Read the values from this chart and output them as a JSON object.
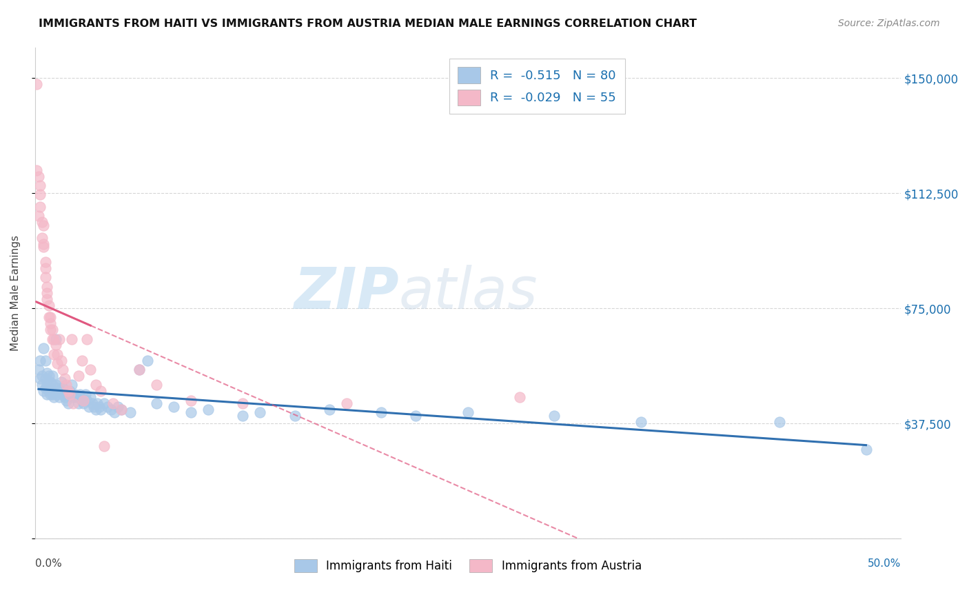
{
  "title": "IMMIGRANTS FROM HAITI VS IMMIGRANTS FROM AUSTRIA MEDIAN MALE EARNINGS CORRELATION CHART",
  "source": "Source: ZipAtlas.com",
  "ylabel": "Median Male Earnings",
  "yticks": [
    0,
    37500,
    75000,
    112500,
    150000
  ],
  "ytick_labels": [
    "",
    "$37,500",
    "$75,000",
    "$112,500",
    "$150,000"
  ],
  "xlim": [
    0.0,
    0.5
  ],
  "ylim": [
    0,
    160000
  ],
  "haiti_R": -0.515,
  "haiti_N": 80,
  "austria_R": -0.029,
  "austria_N": 55,
  "haiti_color": "#a8c8e8",
  "austria_color": "#f4b8c8",
  "haiti_line_color": "#3070b0",
  "austria_line_color": "#e05880",
  "background_color": "#ffffff",
  "watermark_zip": "ZIP",
  "watermark_atlas": "atlas",
  "haiti_scatter_x": [
    0.002,
    0.003,
    0.003,
    0.004,
    0.004,
    0.005,
    0.005,
    0.006,
    0.006,
    0.006,
    0.007,
    0.007,
    0.007,
    0.008,
    0.008,
    0.009,
    0.009,
    0.009,
    0.01,
    0.01,
    0.01,
    0.011,
    0.011,
    0.012,
    0.012,
    0.013,
    0.013,
    0.014,
    0.015,
    0.015,
    0.016,
    0.016,
    0.017,
    0.018,
    0.019,
    0.02,
    0.021,
    0.021,
    0.022,
    0.023,
    0.024,
    0.025,
    0.026,
    0.026,
    0.027,
    0.028,
    0.029,
    0.03,
    0.031,
    0.032,
    0.033,
    0.034,
    0.035,
    0.036,
    0.037,
    0.038,
    0.04,
    0.042,
    0.044,
    0.046,
    0.048,
    0.05,
    0.055,
    0.06,
    0.065,
    0.07,
    0.08,
    0.09,
    0.1,
    0.12,
    0.13,
    0.15,
    0.17,
    0.2,
    0.22,
    0.25,
    0.3,
    0.35,
    0.43,
    0.48
  ],
  "haiti_scatter_y": [
    55000,
    58000,
    52000,
    50000,
    53000,
    62000,
    48000,
    49000,
    52000,
    58000,
    47000,
    50000,
    54000,
    53000,
    48000,
    51000,
    49000,
    47000,
    47000,
    50000,
    53000,
    48000,
    46000,
    65000,
    50000,
    47000,
    49000,
    46000,
    48000,
    51000,
    47000,
    49000,
    46000,
    45000,
    44000,
    48000,
    47000,
    50000,
    46000,
    47000,
    46000,
    44000,
    47000,
    46000,
    45000,
    44000,
    47000,
    45000,
    43000,
    46000,
    44000,
    43000,
    42000,
    44000,
    43000,
    42000,
    44000,
    43000,
    42000,
    41000,
    43000,
    42000,
    41000,
    55000,
    58000,
    44000,
    43000,
    41000,
    42000,
    40000,
    41000,
    40000,
    42000,
    41000,
    40000,
    41000,
    40000,
    38000,
    38000,
    29000
  ],
  "austria_scatter_x": [
    0.001,
    0.001,
    0.002,
    0.002,
    0.003,
    0.003,
    0.003,
    0.004,
    0.004,
    0.005,
    0.005,
    0.005,
    0.006,
    0.006,
    0.006,
    0.007,
    0.007,
    0.007,
    0.008,
    0.008,
    0.009,
    0.009,
    0.009,
    0.01,
    0.01,
    0.011,
    0.011,
    0.012,
    0.013,
    0.013,
    0.014,
    0.015,
    0.016,
    0.017,
    0.018,
    0.019,
    0.02,
    0.021,
    0.022,
    0.025,
    0.027,
    0.028,
    0.03,
    0.032,
    0.035,
    0.038,
    0.04,
    0.045,
    0.05,
    0.06,
    0.07,
    0.09,
    0.12,
    0.18,
    0.28
  ],
  "austria_scatter_y": [
    148000,
    120000,
    118000,
    105000,
    115000,
    108000,
    112000,
    103000,
    98000,
    96000,
    102000,
    95000,
    90000,
    85000,
    88000,
    82000,
    78000,
    80000,
    76000,
    72000,
    72000,
    68000,
    70000,
    68000,
    65000,
    65000,
    60000,
    63000,
    60000,
    57000,
    65000,
    58000,
    55000,
    52000,
    50000,
    48000,
    47000,
    65000,
    44000,
    53000,
    58000,
    45000,
    65000,
    55000,
    50000,
    48000,
    30000,
    44000,
    42000,
    55000,
    50000,
    45000,
    44000,
    44000,
    46000
  ]
}
